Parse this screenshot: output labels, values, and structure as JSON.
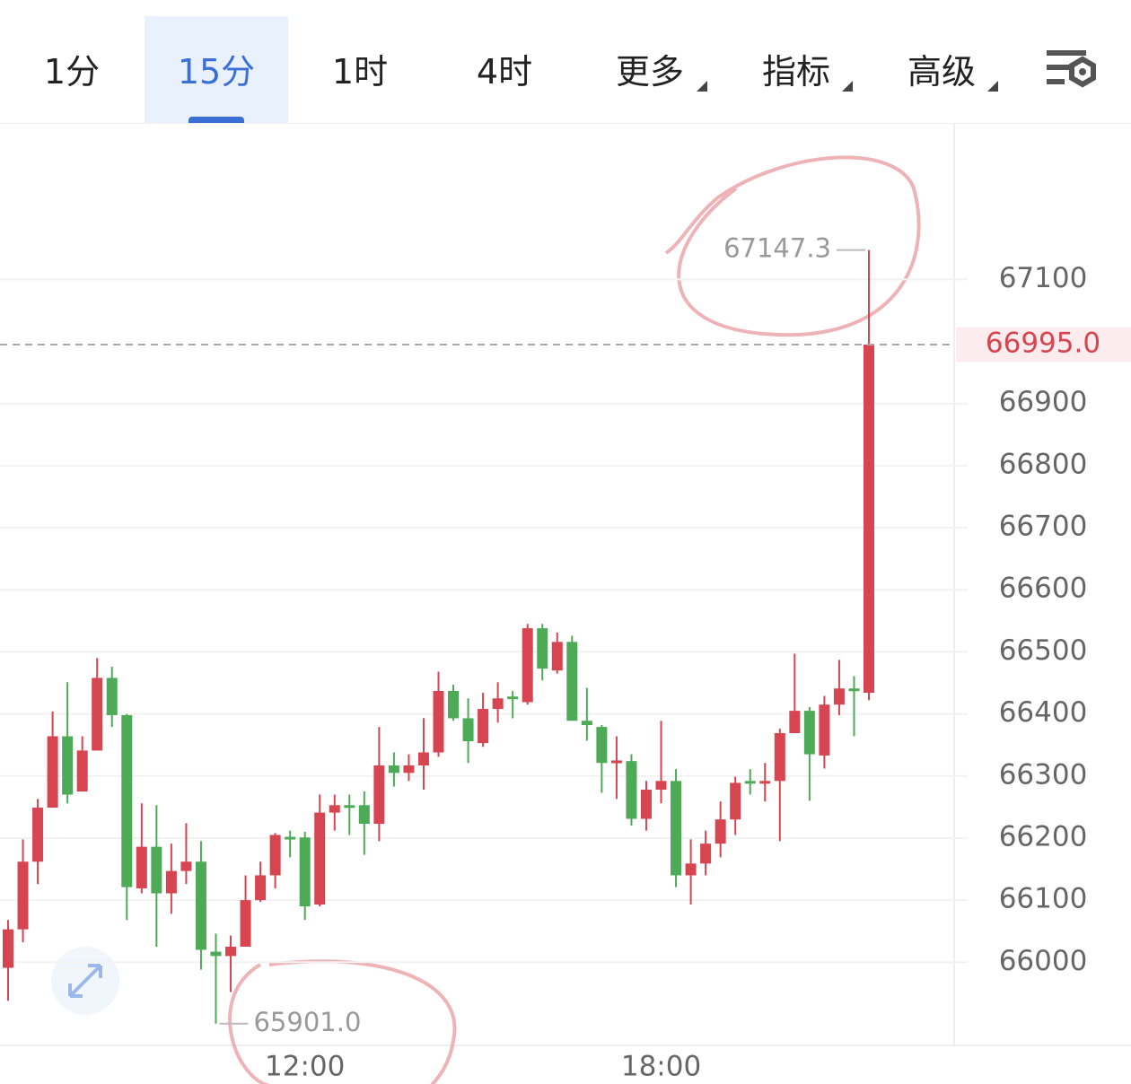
{
  "tabs": [
    "1分",
    "15分",
    "1时",
    "4时",
    "更多",
    "指标",
    "高级"
  ],
  "chart_data": {
    "type": "candlestick",
    "categories": [
      null,
      null,
      null,
      null,
      null,
      null,
      null,
      null,
      null,
      null,
      null,
      null,
      null,
      null,
      null,
      null,
      null,
      null,
      null,
      null,
      "12:00",
      null,
      null,
      null,
      null,
      null,
      null,
      null,
      null,
      null,
      null,
      null,
      null,
      null,
      null,
      null,
      null,
      null,
      null,
      null,
      null,
      null,
      null,
      null,
      "18:00",
      null,
      null,
      null,
      null,
      null,
      null,
      null,
      null,
      null,
      null,
      null,
      null,
      null,
      null
    ],
    "open": [
      65991,
      66053,
      66162,
      66249,
      66364,
      66275,
      66341,
      66458,
      66398,
      66119,
      66186,
      66111,
      66147,
      66162,
      66017,
      66010,
      66025,
      66100,
      66140,
      66202,
      66201,
      66093,
      66241,
      66253,
      66253,
      66223,
      66317,
      66305,
      66317,
      66338,
      66437,
      66393,
      66353,
      66408,
      66428,
      66419,
      66538,
      66470,
      66516,
      66389,
      66379,
      66321,
      66324,
      66231,
      66278,
      66292,
      66140,
      66159,
      66191,
      66230,
      66292,
      66288,
      66292,
      66369,
      66405,
      66333,
      66415,
      66441,
      66434
    ],
    "high": [
      66068,
      66198,
      66263,
      66404,
      66451,
      66364,
      66490,
      66476,
      66400,
      66256,
      66253,
      66191,
      66224,
      66195,
      66046,
      66043,
      66140,
      66162,
      66208,
      66212,
      66210,
      66270,
      66270,
      66270,
      66275,
      66379,
      66338,
      66335,
      66393,
      66468,
      66447,
      66425,
      66434,
      66451,
      66437,
      66545,
      66545,
      66531,
      66526,
      66442,
      66382,
      66364,
      66335,
      66292,
      66389,
      66311,
      66198,
      66212,
      66259,
      66299,
      66311,
      66321,
      66376,
      66497,
      66411,
      66429,
      66487,
      66461,
      67147.3
    ],
    "low": [
      65938,
      66032,
      66126,
      66249,
      66256,
      66275,
      66341,
      66379,
      66068,
      66111,
      66025,
      66078,
      66126,
      65988,
      65901,
      65952,
      66025,
      66097,
      66119,
      66169,
      66068,
      66090,
      66212,
      66205,
      66173,
      66195,
      66283,
      66292,
      66278,
      66331,
      66389,
      66321,
      66347,
      66386,
      66393,
      66415,
      66454,
      66465,
      66389,
      66357,
      66273,
      66263,
      66220,
      66212,
      66256,
      66121,
      66093,
      66140,
      66169,
      66205,
      66270,
      66259,
      66195,
      66369,
      66260,
      66312,
      66398,
      66364,
      66422
    ],
    "close": [
      66053,
      66162,
      66249,
      66364,
      66270,
      66341,
      66458,
      66398,
      66121,
      66186,
      66111,
      66147,
      66162,
      66020,
      66010,
      66025,
      66100,
      66140,
      66205,
      66198,
      66090,
      66241,
      66253,
      66251,
      66223,
      66317,
      66305,
      66317,
      66338,
      66437,
      66393,
      66356,
      66408,
      66425,
      66424,
      66538,
      66473,
      66516,
      66389,
      66382,
      66321,
      66325,
      66231,
      66278,
      66292,
      66140,
      66159,
      66191,
      66230,
      66289,
      66289,
      66292,
      66369,
      66405,
      66335,
      66415,
      66441,
      66438,
      66995
    ],
    "high_label": "67147.3",
    "low_label": "65901.0",
    "last_price_label": "66995.0",
    "up_color": "#d64550",
    "down_color": "#4dab57",
    "ylim": [
      65866,
      67352
    ],
    "yticks": [
      66000,
      66100,
      66200,
      66300,
      66400,
      66500,
      66600,
      66700,
      66800,
      66900,
      67100
    ],
    "grid": true
  }
}
